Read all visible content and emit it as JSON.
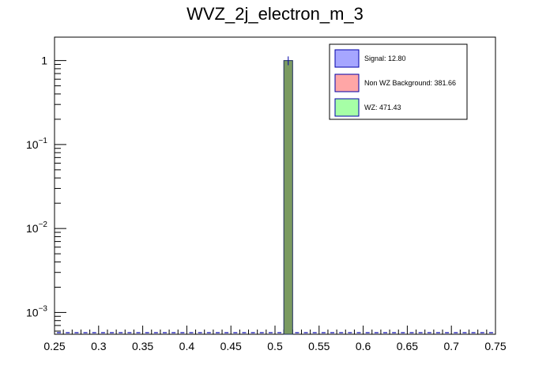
{
  "chart_data": {
    "type": "bar",
    "title": "WVZ_2j_electron_m_3",
    "xlabel": "",
    "ylabel": "",
    "xlim": [
      0.25,
      0.75
    ],
    "ylim": [
      0.00055,
      1.9
    ],
    "log_y": true,
    "grid": false,
    "legend_position": "top-right",
    "x_ticks": [
      {
        "value": 0.25,
        "label": "0.25"
      },
      {
        "value": 0.3,
        "label": "0.3"
      },
      {
        "value": 0.35,
        "label": "0.35"
      },
      {
        "value": 0.4,
        "label": "0.4"
      },
      {
        "value": 0.45,
        "label": "0.45"
      },
      {
        "value": 0.5,
        "label": "0.5"
      },
      {
        "value": 0.55,
        "label": "0.55"
      },
      {
        "value": 0.6,
        "label": "0.6"
      },
      {
        "value": 0.65,
        "label": "0.65"
      },
      {
        "value": 0.7,
        "label": "0.7"
      },
      {
        "value": 0.75,
        "label": "0.75"
      }
    ],
    "y_ticks": [
      {
        "value": 1,
        "base": "1",
        "exp": ""
      },
      {
        "value": 0.1,
        "base": "10",
        "exp": "−1"
      },
      {
        "value": 0.01,
        "base": "10",
        "exp": "−2"
      },
      {
        "value": 0.001,
        "base": "10",
        "exp": "−3"
      }
    ],
    "bins": {
      "low": 0.25,
      "width": 0.01,
      "count": 50
    },
    "bars": [
      {
        "x_low": 0.51,
        "x_high": 0.52,
        "value": 1.0,
        "err": 0.12
      }
    ],
    "series": [
      {
        "name": "Signal: 12.80",
        "fill": "#a6a6ff",
        "stroke": "#0000aa"
      },
      {
        "name": "Non WZ Background: 381.66",
        "fill": "#ffa6a6",
        "stroke": "#0000aa"
      },
      {
        "name": "WZ: 471.43",
        "fill": "#a6ffa6",
        "stroke": "#0000aa"
      }
    ],
    "bar_fill": "#7a9a61",
    "bar_stroke": "#1f2f5f",
    "marker_color": "#0000aa"
  }
}
